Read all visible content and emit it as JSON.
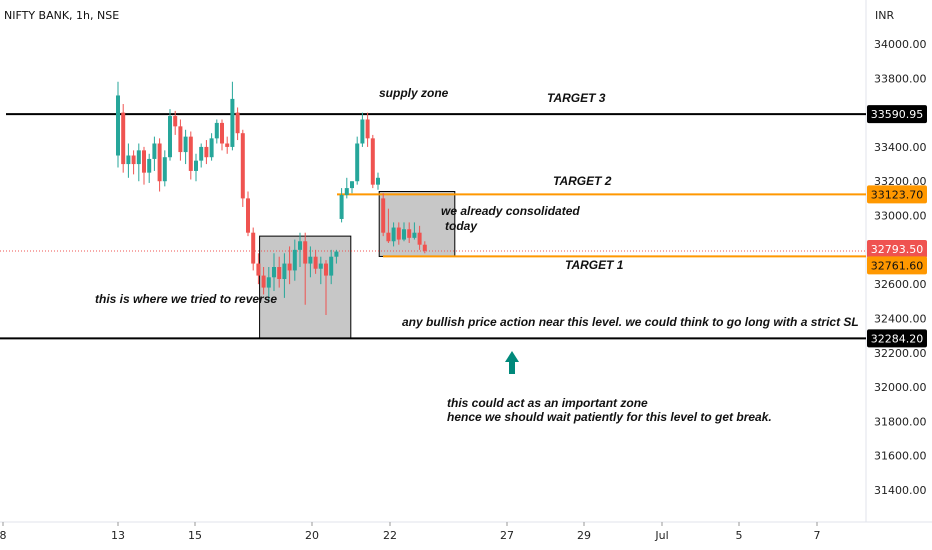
{
  "header": {
    "symbol_title": "NIFTY BANK, 1h, NSE",
    "currency": "INR"
  },
  "chart_data": {
    "type": "candlestick",
    "ylim": [
      31250,
      34250
    ],
    "y_ticks": [
      31400,
      31600,
      31800,
      32000,
      32200,
      32400,
      32600,
      32800,
      33000,
      33200,
      33400,
      33600,
      33800,
      34000
    ],
    "x_ticks": [
      "8",
      "13",
      "15",
      "20",
      "22",
      "27",
      "29",
      "Jul",
      "5",
      "7"
    ],
    "colors": {
      "up": "#26a69a",
      "down": "#ef5350",
      "orange": "#ff9800",
      "black": "#000000",
      "zone_fill": "#bdbdbd"
    },
    "candles": [
      {
        "o": 33350,
        "h": 33780,
        "l": 33280,
        "c": 33700
      },
      {
        "o": 33600,
        "h": 33650,
        "l": 33250,
        "c": 33300
      },
      {
        "o": 33300,
        "h": 33420,
        "l": 33220,
        "c": 33350
      },
      {
        "o": 33350,
        "h": 33380,
        "l": 33240,
        "c": 33300
      },
      {
        "o": 33300,
        "h": 33420,
        "l": 33200,
        "c": 33380
      },
      {
        "o": 33380,
        "h": 33400,
        "l": 33180,
        "c": 33250
      },
      {
        "o": 33250,
        "h": 33360,
        "l": 33190,
        "c": 33330
      },
      {
        "o": 33330,
        "h": 33460,
        "l": 33260,
        "c": 33420
      },
      {
        "o": 33420,
        "h": 33450,
        "l": 33140,
        "c": 33200
      },
      {
        "o": 33200,
        "h": 33380,
        "l": 33170,
        "c": 33340
      },
      {
        "o": 33340,
        "h": 33620,
        "l": 33320,
        "c": 33580
      },
      {
        "o": 33580,
        "h": 33610,
        "l": 33470,
        "c": 33520
      },
      {
        "o": 33520,
        "h": 33560,
        "l": 33320,
        "c": 33370
      },
      {
        "o": 33370,
        "h": 33500,
        "l": 33300,
        "c": 33460
      },
      {
        "o": 33460,
        "h": 33490,
        "l": 33210,
        "c": 33260
      },
      {
        "o": 33260,
        "h": 33360,
        "l": 33200,
        "c": 33320
      },
      {
        "o": 33320,
        "h": 33420,
        "l": 33280,
        "c": 33400
      },
      {
        "o": 33400,
        "h": 33440,
        "l": 33300,
        "c": 33340
      },
      {
        "o": 33340,
        "h": 33480,
        "l": 33320,
        "c": 33450
      },
      {
        "o": 33450,
        "h": 33560,
        "l": 33420,
        "c": 33540
      },
      {
        "o": 33540,
        "h": 33560,
        "l": 33380,
        "c": 33420
      },
      {
        "o": 33420,
        "h": 33460,
        "l": 33360,
        "c": 33400
      },
      {
        "o": 33400,
        "h": 33780,
        "l": 33380,
        "c": 33680
      },
      {
        "o": 33600,
        "h": 33630,
        "l": 33440,
        "c": 33480
      },
      {
        "o": 33480,
        "h": 33500,
        "l": 33050,
        "c": 33100
      },
      {
        "o": 33100,
        "h": 33140,
        "l": 32880,
        "c": 32900
      },
      {
        "o": 32900,
        "h": 32930,
        "l": 32680,
        "c": 32720
      },
      {
        "o": 32720,
        "h": 32780,
        "l": 32600,
        "c": 32650
      },
      {
        "o": 32650,
        "h": 32700,
        "l": 32540,
        "c": 32580
      },
      {
        "o": 32580,
        "h": 32700,
        "l": 32500,
        "c": 32640
      },
      {
        "o": 32640,
        "h": 32780,
        "l": 32560,
        "c": 32700
      },
      {
        "o": 32700,
        "h": 32760,
        "l": 32580,
        "c": 32630
      },
      {
        "o": 32630,
        "h": 32780,
        "l": 32520,
        "c": 32720
      },
      {
        "o": 32720,
        "h": 32820,
        "l": 32600,
        "c": 32680
      },
      {
        "o": 32680,
        "h": 32860,
        "l": 32620,
        "c": 32800
      },
      {
        "o": 32800,
        "h": 32900,
        "l": 32700,
        "c": 32850
      },
      {
        "o": 32850,
        "h": 32900,
        "l": 32480,
        "c": 32720
      },
      {
        "o": 32720,
        "h": 32820,
        "l": 32640,
        "c": 32760
      },
      {
        "o": 32760,
        "h": 32800,
        "l": 32660,
        "c": 32690
      },
      {
        "o": 32690,
        "h": 32760,
        "l": 32600,
        "c": 32720
      },
      {
        "o": 32720,
        "h": 32740,
        "l": 32420,
        "c": 32650
      },
      {
        "o": 32650,
        "h": 32800,
        "l": 32600,
        "c": 32760
      },
      {
        "o": 32760,
        "h": 32800,
        "l": 32720,
        "c": 32790
      },
      {
        "o": 32980,
        "h": 33160,
        "l": 32960,
        "c": 33120
      },
      {
        "o": 33120,
        "h": 33220,
        "l": 33100,
        "c": 33160
      },
      {
        "o": 33160,
        "h": 33200,
        "l": 33130,
        "c": 33200
      },
      {
        "o": 33200,
        "h": 33460,
        "l": 33180,
        "c": 33420
      },
      {
        "o": 33420,
        "h": 33600,
        "l": 33400,
        "c": 33560
      },
      {
        "o": 33560,
        "h": 33600,
        "l": 33400,
        "c": 33450
      },
      {
        "o": 33450,
        "h": 33470,
        "l": 33160,
        "c": 33180
      },
      {
        "o": 33180,
        "h": 33250,
        "l": 33150,
        "c": 33220
      },
      {
        "o": 33100,
        "h": 33130,
        "l": 32880,
        "c": 32900
      },
      {
        "o": 32900,
        "h": 33040,
        "l": 32840,
        "c": 32850
      },
      {
        "o": 32850,
        "h": 32960,
        "l": 32820,
        "c": 32930
      },
      {
        "o": 32930,
        "h": 32960,
        "l": 32830,
        "c": 32860
      },
      {
        "o": 32860,
        "h": 32960,
        "l": 32850,
        "c": 32920
      },
      {
        "o": 32920,
        "h": 32960,
        "l": 32840,
        "c": 32870
      },
      {
        "o": 32870,
        "h": 32960,
        "l": 32860,
        "c": 32900
      },
      {
        "o": 32900,
        "h": 32940,
        "l": 32800,
        "c": 32830
      },
      {
        "o": 32830,
        "h": 32850,
        "l": 32780,
        "c": 32794
      }
    ],
    "levels": [
      {
        "name": "target3-line",
        "price": 33590.95,
        "label": "33590.95",
        "color": "#000000"
      },
      {
        "name": "target2-line",
        "price": 33123.7,
        "label": "33123.70",
        "color": "#ff9800"
      },
      {
        "name": "current-price-line",
        "price": 32793.5,
        "label": "32793.50",
        "color": "#ef5350"
      },
      {
        "name": "target1-line",
        "price": 32761.6,
        "label": "32761.60",
        "color": "#ff9800"
      },
      {
        "name": "support-line",
        "price": 32284.2,
        "label": "32284.20",
        "color": "#000000"
      }
    ],
    "zones": [
      {
        "name": "reversal-zone",
        "from_candle": 28,
        "to_candle": 44,
        "top": 32880,
        "bottom": 32284
      },
      {
        "name": "consolidation-zone",
        "from_candle": 51,
        "to_candle": 64,
        "top": 33140,
        "bottom": 32761.6
      }
    ],
    "annotations": {
      "supply_zone": "supply zone",
      "target3": "TARGET 3",
      "target2": "TARGET 2",
      "target1": "TARGET 1",
      "consolidated_1": "we already consolidated",
      "consolidated_2": "today",
      "reverse": "this is where we tried to reverse",
      "bullish": "any bullish price action near this level. we could think to go long with a strict SL",
      "zone_1": "this could act as an important zone",
      "zone_2": "hence we should wait patiently for this level to get break."
    }
  }
}
